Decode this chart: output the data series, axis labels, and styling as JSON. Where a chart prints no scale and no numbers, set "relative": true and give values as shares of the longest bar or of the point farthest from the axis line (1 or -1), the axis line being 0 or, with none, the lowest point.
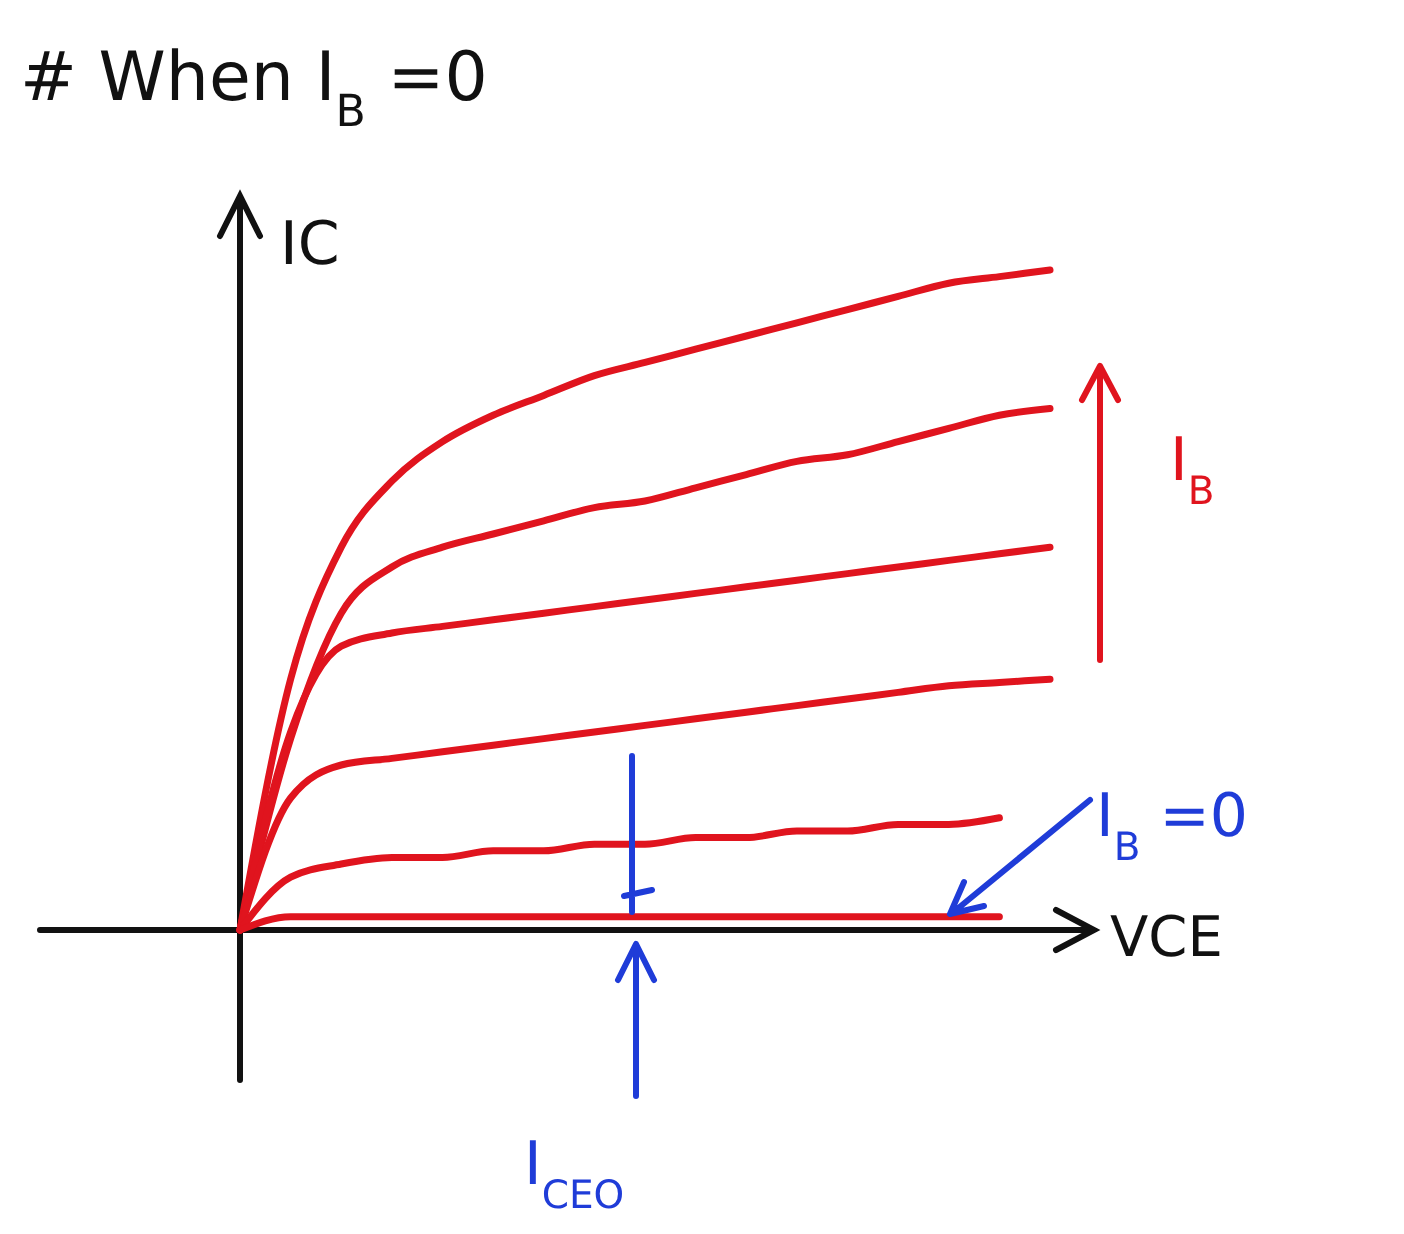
{
  "chart_data": {
    "type": "line",
    "relative": true,
    "title": "# When I$_{B}$ =0",
    "xlabel": "VCE",
    "ylabel": "IC",
    "categories": [
      null,
      null,
      null,
      null,
      null,
      null,
      null,
      null,
      null,
      null,
      null,
      null,
      null,
      null,
      null,
      null,
      null
    ],
    "series": [
      {
        "color": "#e0141e",
        "values": [
          0,
          0.38,
          0.58,
          0.68,
          0.74,
          0.78,
          0.81,
          0.84,
          0.86,
          0.88,
          0.9,
          0.92,
          0.94,
          0.96,
          0.98,
          0.99,
          1
        ]
      },
      {
        "color": "#e0141e",
        "values": [
          0,
          0.29,
          0.48,
          0.55,
          0.58,
          0.6,
          0.62,
          0.64,
          0.65,
          0.67,
          0.69,
          0.71,
          0.72,
          0.74,
          0.76,
          0.78,
          0.79
        ]
      },
      {
        "color": "#e0141e",
        "values": [
          0,
          0.3,
          0.43,
          0.45,
          0.46,
          0.47,
          0.48,
          0.49,
          0.5,
          0.51,
          0.52,
          0.53,
          0.54,
          0.55,
          0.56,
          0.57,
          0.58
        ]
      },
      {
        "color": "#e0141e",
        "values": [
          0,
          0.2,
          0.25,
          0.26,
          0.27,
          0.28,
          0.29,
          0.3,
          0.31,
          0.32,
          0.33,
          0.34,
          0.35,
          0.36,
          0.37,
          0.375,
          0.38
        ]
      },
      {
        "color": "#e0141e",
        "values": [
          0,
          0.08,
          0.1,
          0.11,
          0.11,
          0.12,
          0.12,
          0.13,
          0.13,
          0.14,
          0.14,
          0.15,
          0.15,
          0.16,
          0.16,
          0.17,
          null
        ]
      },
      {
        "color": "#e0141e",
        "values": [
          0,
          0.02,
          0.02,
          0.02,
          0.02,
          0.02,
          0.02,
          0.02,
          0.02,
          0.02,
          0.02,
          0.02,
          0.02,
          0.02,
          0.02,
          0.02,
          null
        ]
      }
    ],
    "annotations": [
      "I$_{B}$",
      "I$_{B}$ =0",
      "I$_{CEO}$"
    ]
  }
}
